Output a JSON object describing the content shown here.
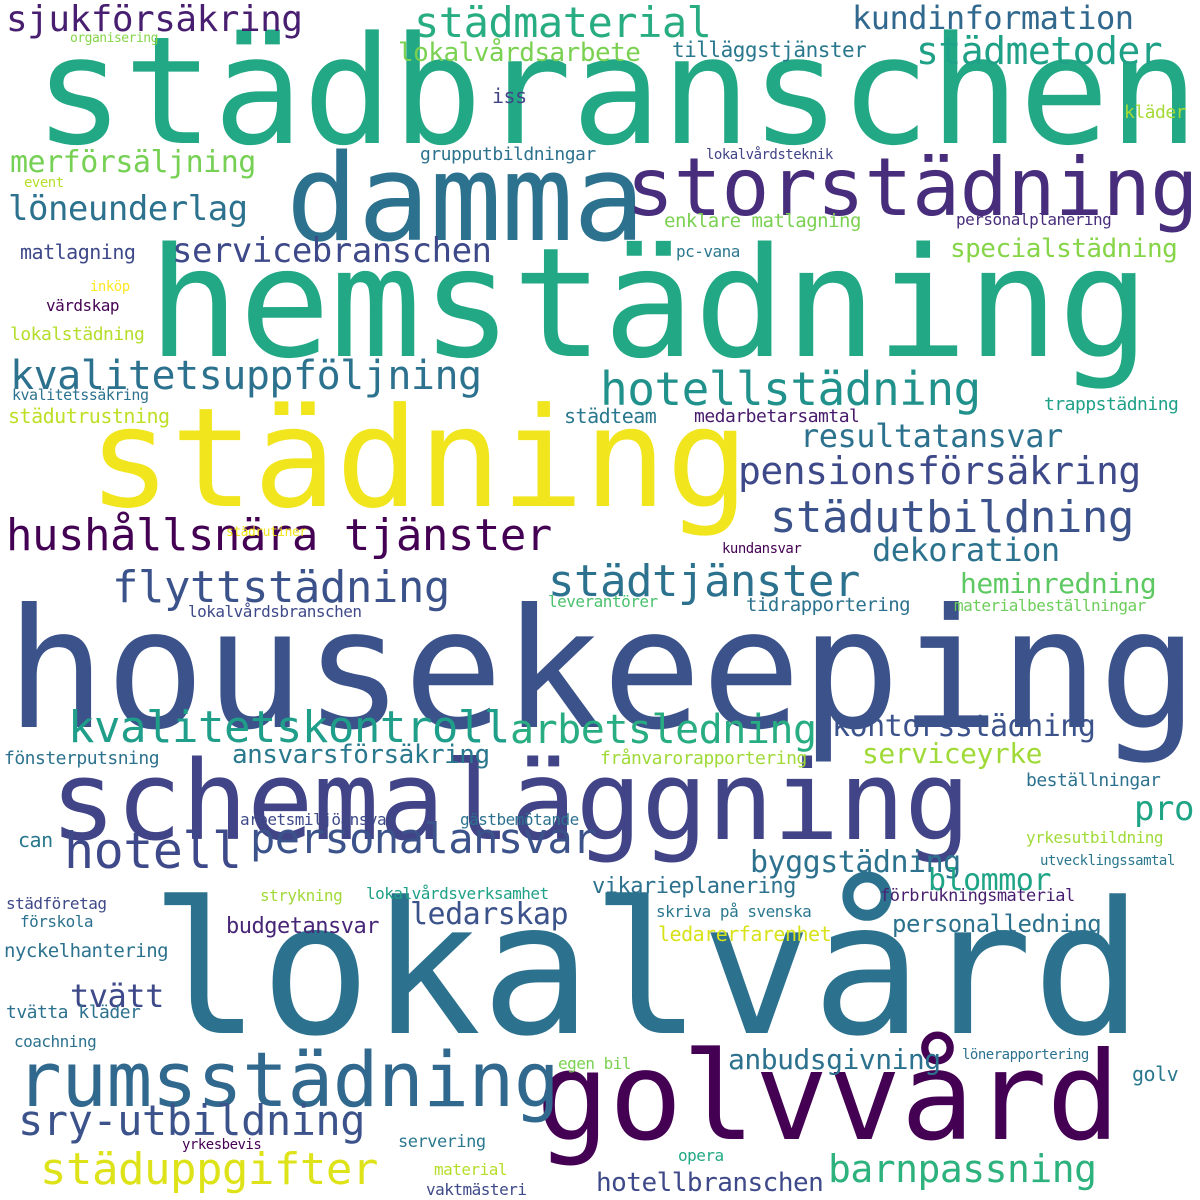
{
  "words": [
    {
      "text": "städbranschen",
      "color": "#22a884"
    },
    {
      "text": "damma",
      "color": "#2c728e"
    },
    {
      "text": "storstädning",
      "color": "#472d7b"
    },
    {
      "text": "hemstädning",
      "color": "#22a884"
    },
    {
      "text": "städning",
      "color": "#f1e51d"
    },
    {
      "text": "housekeeping",
      "color": "#3b528b"
    },
    {
      "text": "schemaläggning",
      "color": "#414487"
    },
    {
      "text": "lokalvård",
      "color": "#2c728e"
    },
    {
      "text": "golvvård",
      "color": "#440154"
    },
    {
      "text": "rumsstädning",
      "color": "#31688e"
    },
    {
      "text": "hushållsnära tjänster",
      "color": "#440154"
    },
    {
      "text": "hotellstädning",
      "color": "#21918c"
    },
    {
      "text": "kvalitetsuppföljning",
      "color": "#2c728e"
    },
    {
      "text": "flyttstädning",
      "color": "#3b528b"
    },
    {
      "text": "kvalitetskontroll",
      "color": "#1f9e89"
    },
    {
      "text": "städtjänster",
      "color": "#2c728e"
    },
    {
      "text": "städutbildning",
      "color": "#3b528b"
    },
    {
      "text": "pensionsförsäkring",
      "color": "#3e4989"
    },
    {
      "text": "arbetsledning",
      "color": "#27ad81"
    },
    {
      "text": "personalansvar",
      "color": "#3b528b"
    },
    {
      "text": "hotell",
      "color": "#3e4989"
    },
    {
      "text": "sry-utbildning",
      "color": "#3b528b"
    },
    {
      "text": "städuppgifter",
      "color": "#dde318"
    },
    {
      "text": "barnpassning",
      "color": "#2db27d"
    },
    {
      "text": "servicebranschen",
      "color": "#3e4989"
    },
    {
      "text": "städmaterial",
      "color": "#27ad81"
    },
    {
      "text": "städmetoder",
      "color": "#1fa187"
    },
    {
      "text": "sjukförsäkring",
      "color": "#481f70"
    },
    {
      "text": "kundinformation",
      "color": "#31688e"
    },
    {
      "text": "resultatansvar",
      "color": "#2c728e"
    },
    {
      "text": "dekoration",
      "color": "#2c728e"
    },
    {
      "text": "löneunderlag",
      "color": "#2c728e"
    },
    {
      "text": "merförsäljning",
      "color": "#75d054"
    },
    {
      "text": "heminredning",
      "color": "#5ec962"
    },
    {
      "text": "kontorsstädning",
      "color": "#3b528b"
    },
    {
      "text": "serviceyrke",
      "color": "#a0da39"
    },
    {
      "text": "ansvarsförsäkring",
      "color": "#2a788e"
    },
    {
      "text": "byggstädning",
      "color": "#2c728e"
    },
    {
      "text": "blommor",
      "color": "#20a486"
    },
    {
      "text": "pro",
      "color": "#20a486"
    },
    {
      "text": "tvätt",
      "color": "#3e4989"
    },
    {
      "text": "ledarskap",
      "color": "#3b528b"
    },
    {
      "text": "anbudsgivning",
      "color": "#2c728e"
    },
    {
      "text": "hotellbranschen",
      "color": "#3e4989"
    },
    {
      "text": "specialstädning",
      "color": "#86d549"
    },
    {
      "text": "lokalvårdsarbete",
      "color": "#7ad151"
    },
    {
      "text": "tilläggstjänster",
      "color": "#2a788e"
    },
    {
      "text": "personalledning",
      "color": "#2c728e"
    },
    {
      "text": "vikarieplanering",
      "color": "#2c728e"
    },
    {
      "text": "budgetansvar",
      "color": "#482677"
    },
    {
      "text": "ledarerfarenhet",
      "color": "#d8e219"
    },
    {
      "text": "organisering",
      "color": "#86d549"
    },
    {
      "text": "iss",
      "color": "#414487"
    },
    {
      "text": "kläder",
      "color": "#a5db36"
    },
    {
      "text": "grupputbildningar",
      "color": "#2c728e"
    },
    {
      "text": "lokalvårdsteknik",
      "color": "#414487"
    },
    {
      "text": "event",
      "color": "#b5de2b"
    },
    {
      "text": "enklare matlagning",
      "color": "#7ad151"
    },
    {
      "text": "personalplanering",
      "color": "#472d7b"
    },
    {
      "text": "matlagning",
      "color": "#3e4989"
    },
    {
      "text": "pc-vana",
      "color": "#2a788e"
    },
    {
      "text": "inköp",
      "color": "#fde725"
    },
    {
      "text": "värdskap",
      "color": "#440154"
    },
    {
      "text": "lokalstädning",
      "color": "#b5de2b"
    },
    {
      "text": "kvalitetssäkring",
      "color": "#2c728e"
    },
    {
      "text": "städutrustning",
      "color": "#bddf26"
    },
    {
      "text": "städteam",
      "color": "#2a788e"
    },
    {
      "text": "medarbetarsamtal",
      "color": "#481a6c"
    },
    {
      "text": "trappstädning",
      "color": "#1fa187"
    },
    {
      "text": "städrutiner",
      "color": "#f1e51d"
    },
    {
      "text": "kundansvar",
      "color": "#440154"
    },
    {
      "text": "lokalvårdsbranschen",
      "color": "#3e4989"
    },
    {
      "text": "leverantörer",
      "color": "#4ac16d"
    },
    {
      "text": "tidrapportering",
      "color": "#2c728e"
    },
    {
      "text": "materialbeställningar",
      "color": "#6ccd5a"
    },
    {
      "text": "fönsterputsning",
      "color": "#2c728e"
    },
    {
      "text": "frånvarorapportering",
      "color": "#a0da39"
    },
    {
      "text": "beställningar",
      "color": "#2c728e"
    },
    {
      "text": "arbetsmiljöansvar",
      "color": "#3e4989"
    },
    {
      "text": "gästbemötande",
      "color": "#2c728e"
    },
    {
      "text": "yrkesutbildning",
      "color": "#a0da39"
    },
    {
      "text": "can",
      "color": "#2a788e"
    },
    {
      "text": "utvecklingssamtal",
      "color": "#2a788e"
    },
    {
      "text": "strykning",
      "color": "#a0da39"
    },
    {
      "text": "lokalvårdsverksamhet",
      "color": "#1fa187"
    },
    {
      "text": "förbrukningsmaterial",
      "color": "#481f70"
    },
    {
      "text": "städföretag",
      "color": "#3e4989"
    },
    {
      "text": "förskola",
      "color": "#2c728e"
    },
    {
      "text": "skriva på svenska",
      "color": "#2a788e"
    },
    {
      "text": "nyckelhantering",
      "color": "#2c728e"
    },
    {
      "text": "tvätta kläder",
      "color": "#2c728e"
    },
    {
      "text": "coachning",
      "color": "#2c728e"
    },
    {
      "text": "egen bil",
      "color": "#7ad151"
    },
    {
      "text": "lönerapportering",
      "color": "#2c728e"
    },
    {
      "text": "golv",
      "color": "#2a788e"
    },
    {
      "text": "yrkesbevis",
      "color": "#440154"
    },
    {
      "text": "servering",
      "color": "#2a788e"
    },
    {
      "text": "opera",
      "color": "#22a884"
    },
    {
      "text": "material",
      "color": "#b5de2b"
    },
    {
      "text": "vaktmästeri",
      "color": "#3e4989"
    }
  ]
}
